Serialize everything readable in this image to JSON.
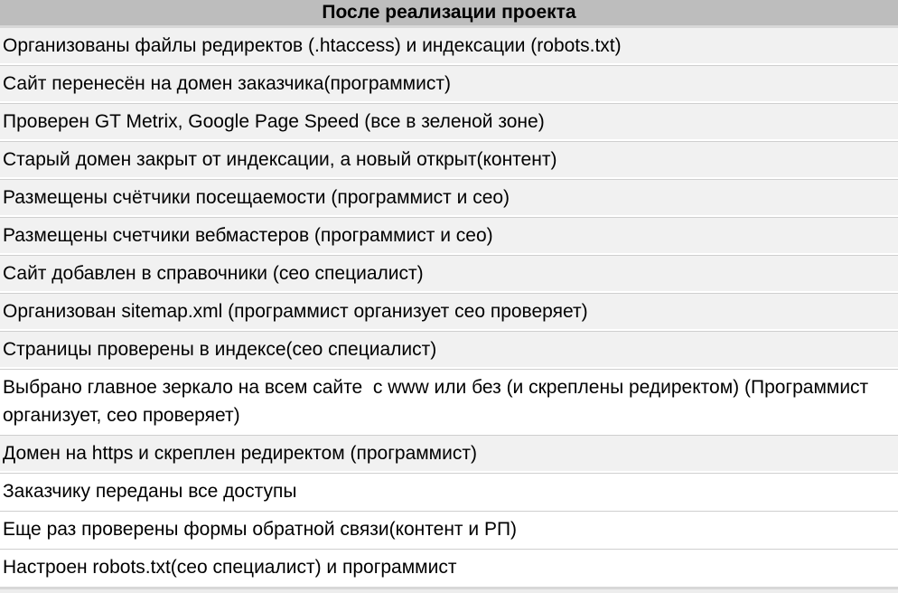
{
  "table": {
    "header": "После реализации проекта",
    "rows": [
      {
        "text": "Организованы файлы редиректов (.htaccess) и индексации (robots.txt)",
        "variant": "gray"
      },
      {
        "text": "Сайт перенесён на домен заказчика(программист)",
        "variant": "gray"
      },
      {
        "text": "Проверен GT Metrix, Google Page Speed (все в зеленой зоне)",
        "variant": "gray"
      },
      {
        "text": "Старый домен закрыт от индексации, а новый открыт(контент)",
        "variant": "gray"
      },
      {
        "text": "Размещены счётчики посещаемости (программист и сео)",
        "variant": "gray"
      },
      {
        "text": "Размещены счетчики вебмастеров (программист и сео)",
        "variant": "gray"
      },
      {
        "text": "Сайт добавлен в справочники (сео специалист)",
        "variant": "gray"
      },
      {
        "text": "Организован sitemap.xml (программист организует сео проверяет)",
        "variant": "gray"
      },
      {
        "text": "Страницы проверены в индексе(сео специалист)",
        "variant": "gray"
      },
      {
        "text": "Выбрано главное зеркало на всем сайте  с www или без (и скреплены редиректом) (Программист организует, сео проверяет)",
        "variant": "white"
      },
      {
        "text": "Домен на https и скреплен редиректом (программист)",
        "variant": "gray"
      },
      {
        "text": "Заказчику переданы все доступы",
        "variant": "white"
      },
      {
        "text": "Еще раз проверены формы обратной связи(контент и РП)",
        "variant": "white"
      },
      {
        "text": "Настроен robots.txt(сео специалист) и программист",
        "variant": "white"
      }
    ]
  },
  "colors": {
    "page_bg": "#ffffff",
    "header_bg": "#bdbdbd",
    "header_divider": "#d8d8d8",
    "row_gray_bg": "#f1f1f1",
    "row_white_bg": "#ffffff",
    "separator": "#cfcfcf",
    "text": "#000000"
  }
}
